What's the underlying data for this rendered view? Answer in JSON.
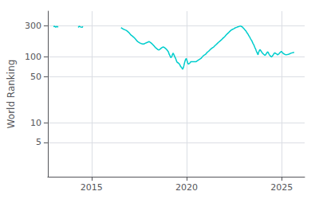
{
  "chart_data": {
    "type": "line",
    "ylabel": "World Ranking",
    "color": "#00CDCD",
    "log": "y",
    "grid": true,
    "xlim": [
      2012.7,
      2026.2
    ],
    "ylim": [
      1.5,
      500
    ],
    "xticks": [
      2015,
      2020,
      2025
    ],
    "yticks": [
      5,
      10,
      50,
      100,
      300
    ],
    "series": [
      {
        "x": [
          2013.0,
          2013.05,
          2013.12,
          2013.18,
          2013.25
        ],
        "values": [
          290,
          295,
          285,
          293,
          285
        ]
      },
      {
        "x": [
          2014.3,
          2014.35,
          2014.42,
          2014.5,
          2014.55
        ],
        "values": [
          282,
          295,
          287,
          283,
          292
        ]
      },
      {
        "x": [
          2016.55,
          2016.62,
          2016.68,
          2016.75,
          2016.82,
          2016.88,
          2016.95,
          2017.02,
          2017.08,
          2017.15,
          2017.22,
          2017.28,
          2017.35,
          2017.42,
          2017.48,
          2017.55,
          2017.62,
          2017.68,
          2017.75,
          2017.82,
          2017.88,
          2017.95,
          2018.02,
          2018.08,
          2018.15,
          2018.22,
          2018.28,
          2018.35,
          2018.42,
          2018.48,
          2018.55,
          2018.62,
          2018.68,
          2018.75,
          2018.82,
          2018.88,
          2018.95,
          2019.02,
          2019.05,
          2019.08,
          2019.12,
          2019.15,
          2019.18,
          2019.22,
          2019.25,
          2019.28,
          2019.32,
          2019.35,
          2019.38,
          2019.42,
          2019.45,
          2019.48,
          2019.52,
          2019.55,
          2019.58,
          2019.62,
          2019.65,
          2019.68,
          2019.72,
          2019.75,
          2019.78,
          2019.82,
          2019.85,
          2019.88,
          2019.92,
          2019.95,
          2019.98,
          2020.02,
          2020.05,
          2020.08,
          2020.15,
          2020.22,
          2020.5,
          2020.62,
          2020.75,
          2020.88,
          2020.95,
          2021.02,
          2021.08,
          2021.15,
          2021.22,
          2021.28,
          2021.35,
          2021.42,
          2021.48,
          2021.55,
          2021.62,
          2021.68,
          2021.75,
          2021.82,
          2021.88,
          2021.95,
          2022.02,
          2022.08,
          2022.15,
          2022.22,
          2022.28,
          2022.35,
          2022.42,
          2022.48,
          2022.52,
          2022.55,
          2022.58,
          2022.62,
          2022.65,
          2022.68,
          2022.72,
          2022.75,
          2022.78,
          2022.82,
          2022.85,
          2022.88,
          2022.92,
          2022.95,
          2022.98,
          2023.02,
          2023.05,
          2023.08,
          2023.12,
          2023.15,
          2023.18,
          2023.22,
          2023.25,
          2023.28,
          2023.32,
          2023.35,
          2023.38,
          2023.42,
          2023.45,
          2023.48,
          2023.52,
          2023.55,
          2023.58,
          2023.62,
          2023.65,
          2023.68,
          2023.72,
          2023.75,
          2023.78,
          2023.82,
          2023.85,
          2023.88,
          2023.92,
          2023.95,
          2023.98,
          2024.02,
          2024.05,
          2024.08,
          2024.12,
          2024.15,
          2024.18,
          2024.22,
          2024.25,
          2024.28,
          2024.32,
          2024.35,
          2024.38,
          2024.42,
          2024.45,
          2024.48,
          2024.52,
          2024.55,
          2024.58,
          2024.62,
          2024.65,
          2024.68,
          2024.72,
          2024.75,
          2024.78,
          2024.82,
          2024.85,
          2024.88,
          2024.92,
          2024.95,
          2024.98,
          2025.02,
          2025.08,
          2025.15,
          2025.22,
          2025.35,
          2025.5,
          2025.65
        ],
        "values": [
          280,
          272,
          265,
          260,
          255,
          248,
          238,
          225,
          215,
          208,
          200,
          192,
          182,
          172,
          168,
          163,
          160,
          158,
          158,
          162,
          165,
          168,
          172,
          168,
          162,
          155,
          148,
          140,
          135,
          130,
          128,
          133,
          138,
          142,
          140,
          136,
          130,
          122,
          118,
          110,
          105,
          100,
          98,
          102,
          108,
          115,
          110,
          105,
          100,
          95,
          90,
          85,
          82,
          82,
          80,
          78,
          75,
          72,
          70,
          68,
          65,
          68,
          73,
          80,
          88,
          93,
          95,
          88,
          82,
          78,
          80,
          85,
          85,
          90,
          95,
          105,
          108,
          112,
          118,
          122,
          128,
          133,
          138,
          142,
          148,
          155,
          162,
          168,
          175,
          182,
          190,
          198,
          208,
          218,
          228,
          238,
          248,
          258,
          265,
          270,
          275,
          278,
          280,
          283,
          285,
          288,
          290,
          292,
          295,
          297,
          296,
          292,
          288,
          282,
          275,
          268,
          262,
          255,
          248,
          240,
          232,
          224,
          216,
          208,
          200,
          192,
          185,
          178,
          170,
          162,
          155,
          148,
          140,
          133,
          126,
          120,
          113,
          108,
          118,
          125,
          130,
          127,
          122,
          118,
          115,
          112,
          110,
          108,
          106,
          108,
          112,
          116,
          120,
          118,
          112,
          108,
          105,
          103,
          100,
          102,
          105,
          108,
          112,
          115,
          115,
          113,
          112,
          110,
          108,
          110,
          112,
          115,
          118,
          120,
          122,
          118,
          113,
          110,
          108,
          110,
          115,
          118
        ]
      }
    ]
  }
}
